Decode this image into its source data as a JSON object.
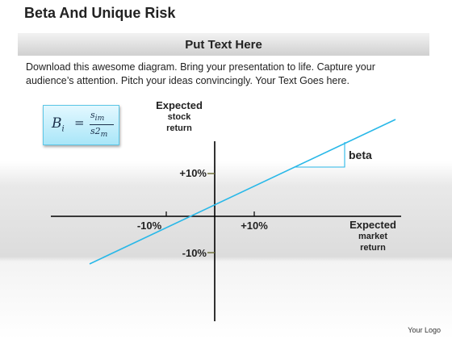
{
  "header": {
    "title": "Beta And Unique Risk",
    "banner": "Put Text Here",
    "description": "Download this awesome diagram. Bring your presentation to life. Capture your audience’s attention. Pitch your ideas convincingly. Your Text Goes here."
  },
  "formula": {
    "lhs": "B",
    "lhs_sub": "i",
    "eq": "=",
    "numerator": "s",
    "numerator_sub": "im",
    "denominator": "s2",
    "denominator_sub": "m"
  },
  "diagram": {
    "y_axis_label": [
      "Expected",
      "stock",
      "return"
    ],
    "x_axis_label": [
      "Expected",
      "market",
      "return"
    ],
    "tick_x_neg": "-10%",
    "tick_x_pos": "+10%",
    "tick_y_pos": "+10%",
    "tick_y_neg": "-10%",
    "beta_label": "beta",
    "line_color": "#29b8e8"
  },
  "footer": {
    "logo": "Your Logo"
  }
}
